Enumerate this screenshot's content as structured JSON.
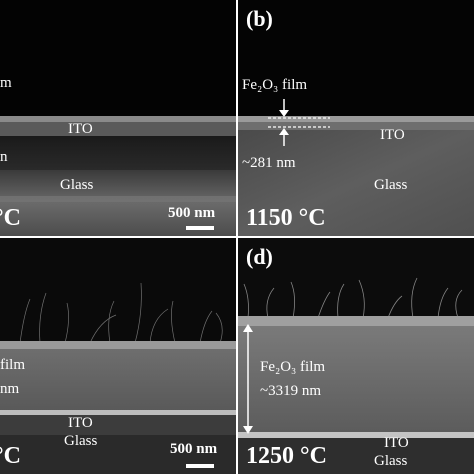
{
  "panels": {
    "a": {
      "film_label": "m",
      "film2_label": "n",
      "ito_label": "ITO",
      "glass_label": "Glass",
      "temperature": "°C",
      "scale_bar": "500 nm"
    },
    "b": {
      "tag": "(b)",
      "film_label": "Fe₂O₃ film",
      "ito_label": "ITO",
      "thickness": "~281 nm",
      "glass_label": "Glass",
      "temperature": "1150 °C"
    },
    "c": {
      "film_label": "film",
      "thickness": "nm",
      "ito_label": "ITO",
      "glass_label": "Glass",
      "temperature": "°C",
      "scale_bar": "500 nm"
    },
    "d": {
      "tag": "(d)",
      "film_label": "Fe₂O₃ film",
      "thickness": "~3319 nm",
      "ito_label": "ITO",
      "glass_label": "Glass",
      "temperature": "1250 °C"
    }
  }
}
